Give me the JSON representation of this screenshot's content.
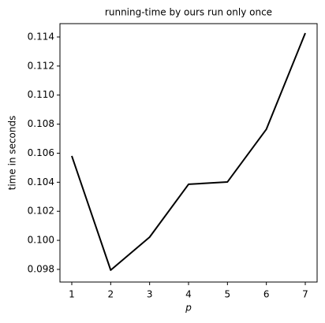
{
  "chart_data": {
    "type": "line",
    "title": "running-time by ours run only once",
    "x_label": "p",
    "y_label": "time in seconds",
    "x": [
      1,
      2,
      3,
      4,
      5,
      6,
      7
    ],
    "series": [
      {
        "name": "running-time",
        "color": "#000000",
        "values": [
          0.10581,
          0.09795,
          0.10022,
          0.10386,
          0.10402,
          0.10765,
          0.11427
        ]
      }
    ],
    "xlim": [
      0.696,
      7.304
    ],
    "ylim": [
      0.09713,
      0.11492
    ],
    "xticks": [
      1,
      2,
      3,
      4,
      5,
      6,
      7
    ],
    "yticks": [
      0.098,
      {
        "value": 0.1,
        "label": "0.100"
      },
      0.102,
      0.104,
      0.106,
      0.108,
      {
        "value": 0.11,
        "label": "0.110"
      },
      0.112,
      0.114
    ],
    "grid": false
  }
}
